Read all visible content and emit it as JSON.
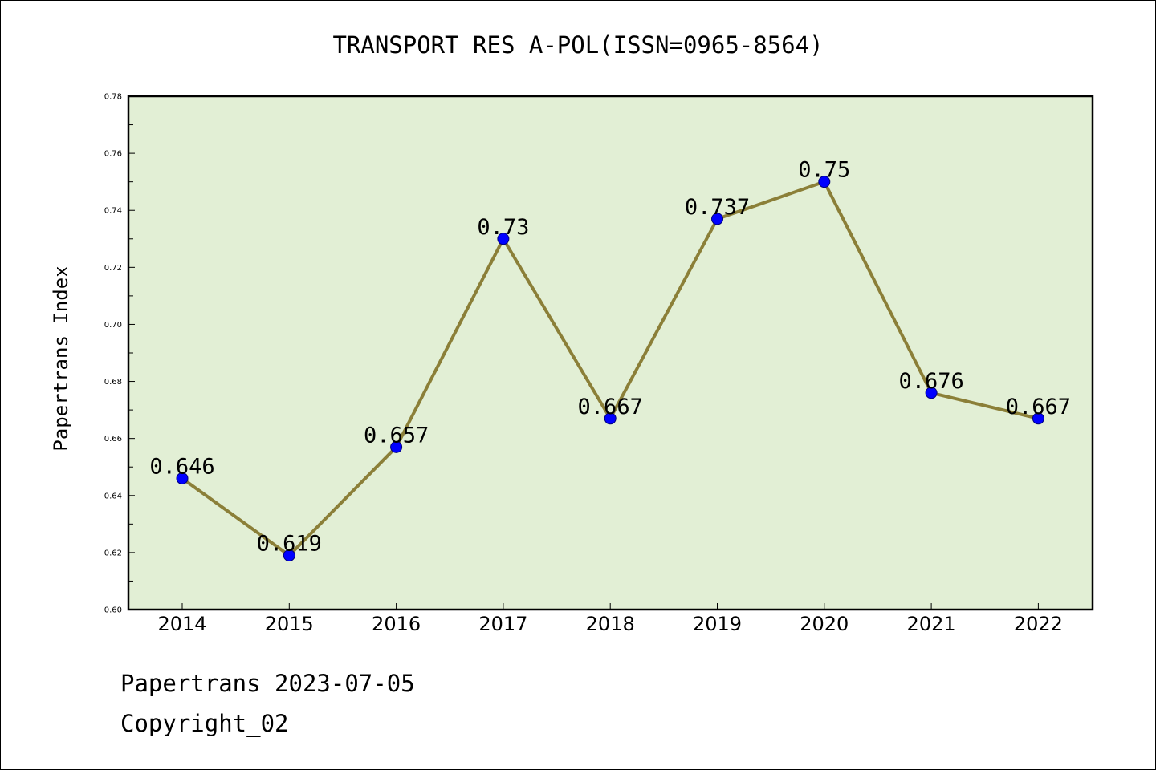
{
  "chart_data": {
    "type": "line",
    "title": "TRANSPORT RES A-POL(ISSN=0965-8564)",
    "xlabel": "",
    "ylabel": "Papertrans Index",
    "categories": [
      "2014",
      "2015",
      "2016",
      "2017",
      "2018",
      "2019",
      "2020",
      "2021",
      "2022"
    ],
    "values": [
      0.646,
      0.619,
      0.657,
      0.73,
      0.667,
      0.737,
      0.75,
      0.676,
      0.667
    ],
    "data_labels": [
      "0.646",
      "0.619",
      "0.657",
      "0.73",
      "0.667",
      "0.737",
      "0.75",
      "0.676",
      "0.667"
    ],
    "ylim": [
      0.6,
      0.78
    ],
    "yticks": [
      "0.60",
      "0.62",
      "0.64",
      "0.66",
      "0.68",
      "0.70",
      "0.72",
      "0.74",
      "0.76",
      "0.78"
    ],
    "grid": false,
    "colors": {
      "plot_background": "#e2efd5",
      "line": "#8b7f38",
      "marker": "#0000ff",
      "marker_edge": "#00007a"
    }
  },
  "footer": {
    "line1": "Papertrans 2023-07-05",
    "line2": "Copyright_02"
  }
}
